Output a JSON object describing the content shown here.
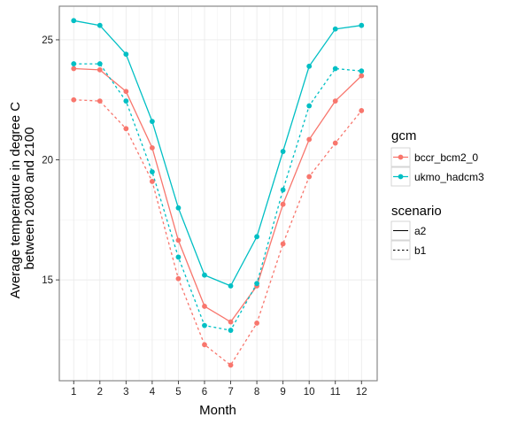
{
  "chart_data": {
    "type": "line",
    "xlabel": "Month",
    "ylabel_lines": [
      "Average temperature in degree C",
      "between 2080 and 2100"
    ],
    "x": [
      1,
      2,
      3,
      4,
      5,
      6,
      7,
      8,
      9,
      10,
      11,
      12
    ],
    "xlim": [
      0.45,
      12.6
    ],
    "ylim": [
      10.8,
      26.4
    ],
    "y_ticks": [
      15,
      20,
      25
    ],
    "x_ticks": [
      1,
      2,
      3,
      4,
      5,
      6,
      7,
      8,
      9,
      10,
      11,
      12
    ],
    "grid": true,
    "legend_position": "right",
    "series": [
      {
        "gcm": "bccr_bcm2_0",
        "scenario": "a2",
        "color": "#F8766D",
        "linetype": "solid",
        "values": [
          23.8,
          23.75,
          22.85,
          20.5,
          16.65,
          13.9,
          13.25,
          14.75,
          18.15,
          20.85,
          22.45,
          23.5
        ]
      },
      {
        "gcm": "bccr_bcm2_0",
        "scenario": "b1",
        "color": "#F8766D",
        "linetype": "dashed",
        "values": [
          22.5,
          22.45,
          21.3,
          19.1,
          15.05,
          12.3,
          11.45,
          13.2,
          16.5,
          19.3,
          20.7,
          22.05
        ]
      },
      {
        "gcm": "ukmo_hadcm3",
        "scenario": "a2",
        "color": "#00BFC4",
        "linetype": "solid",
        "values": [
          25.8,
          25.6,
          24.4,
          21.6,
          18.0,
          15.2,
          14.75,
          16.8,
          20.35,
          23.9,
          25.45,
          25.6
        ]
      },
      {
        "gcm": "ukmo_hadcm3",
        "scenario": "b1",
        "color": "#00BFC4",
        "linetype": "dashed",
        "values": [
          24.0,
          24.0,
          22.45,
          19.5,
          15.95,
          13.1,
          12.9,
          14.85,
          18.75,
          22.25,
          23.8,
          23.7
        ]
      }
    ],
    "legend": {
      "gcm": {
        "title": "gcm",
        "items": [
          {
            "label": "bccr_bcm2_0",
            "color": "#F8766D"
          },
          {
            "label": "ukmo_hadcm3",
            "color": "#00BFC4"
          }
        ]
      },
      "scenario": {
        "title": "scenario",
        "items": [
          {
            "label": "a2",
            "linetype": "solid"
          },
          {
            "label": "b1",
            "linetype": "dashed"
          }
        ]
      }
    }
  }
}
